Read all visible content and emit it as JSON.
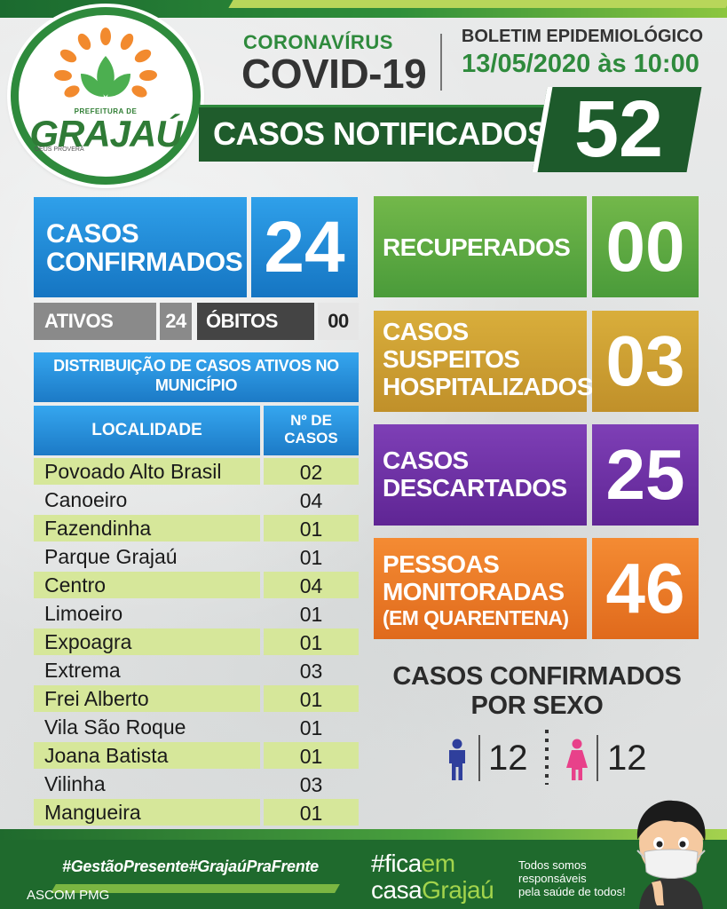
{
  "logo": {
    "prefeitura": "PREFEITURA DE",
    "name": "GRAJAÚ",
    "tagline": "DEUS PROVERÁ"
  },
  "header": {
    "coronavirus": "CORONAVÍRUS",
    "covid": "COVID-19",
    "boletim": "BOLETIM EPIDEMIOLÓGICO",
    "date": "13/05/2020 às 10:00",
    "notificados_label": "CASOS NOTIFICADOS",
    "notificados_value": "52"
  },
  "confirmados": {
    "label_line1": "CASOS",
    "label_line2": "CONFIRMADOS",
    "value": "24",
    "ativos_label": "ATIVOS",
    "ativos_value": "24",
    "obitos_label": "ÓBITOS",
    "obitos_value": "00"
  },
  "distribuicao": {
    "title_line1": "DISTRIBUIÇÃO DE CASOS ATIVOS NO",
    "title_line2": "MUNICÍPIO",
    "col_localidade": "LOCALIDADE",
    "col_casos_line1": "Nº DE",
    "col_casos_line2": "CASOS",
    "rows": [
      {
        "localidade": "Povoado Alto Brasil",
        "casos": "02"
      },
      {
        "localidade": "Canoeiro",
        "casos": "04"
      },
      {
        "localidade": "Fazendinha",
        "casos": "01"
      },
      {
        "localidade": "Parque Grajaú",
        "casos": "01"
      },
      {
        "localidade": "Centro",
        "casos": "04"
      },
      {
        "localidade": "Limoeiro",
        "casos": "01"
      },
      {
        "localidade": "Expoagra",
        "casos": "01"
      },
      {
        "localidade": "Extrema",
        "casos": "03"
      },
      {
        "localidade": "Frei Alberto",
        "casos": "01"
      },
      {
        "localidade": "Vila São Roque",
        "casos": "01"
      },
      {
        "localidade": "Joana Batista",
        "casos": "01"
      },
      {
        "localidade": "Vilinha",
        "casos": "03"
      },
      {
        "localidade": "Mangueira",
        "casos": "01"
      }
    ]
  },
  "recuperados": {
    "label": "RECUPERADOS",
    "value": "00"
  },
  "suspeitos": {
    "line1": "CASOS",
    "line2": "SUSPEITOS",
    "line3": "HOSPITALIZADOS",
    "value": "03"
  },
  "descartados": {
    "line1": "CASOS",
    "line2": "DESCARTADOS",
    "value": "25"
  },
  "monitoradas": {
    "line1": "PESSOAS",
    "line2": "MONITORADAS",
    "line3": "(EM QUARENTENA)",
    "value": "46"
  },
  "por_sexo": {
    "title_line1": "CASOS CONFIRMADOS",
    "title_line2": "POR SEXO",
    "masculino": "12",
    "feminino": "12"
  },
  "footer": {
    "hashtags": "#GestãoPresente#GrajaúPraFrente",
    "ascom": "ASCOM PMG",
    "fica_part1": "#fica",
    "fica_part2": "em",
    "casa_part1": "casa",
    "casa_part2": "Grajaú",
    "msg_line1": "Todos somos",
    "msg_line2": "responsáveis",
    "msg_line3": "pela saúde de todos!"
  },
  "colors": {
    "brand_green": "#2e8a3c",
    "dark_green": "#1f5c2c",
    "blue": "#1c7ac6",
    "recuperados": "#4a9b3a",
    "suspeitos": "#c0902a",
    "descartados": "#5f2594",
    "monitoradas": "#e06a1c",
    "male": "#2f3f9c",
    "female": "#e8418a"
  }
}
